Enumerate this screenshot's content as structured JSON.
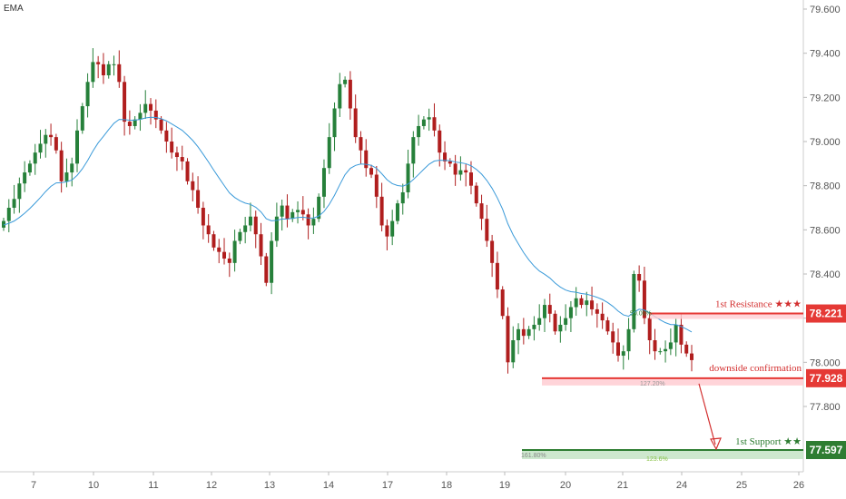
{
  "indicator_label": "EMA",
  "colors": {
    "up": "#26803a",
    "down": "#b01e1e",
    "ema": "#3a9ad9",
    "resistance": "#e53935",
    "support": "#2e7d32",
    "axis_text": "#555555"
  },
  "chart_data": {
    "type": "candlestick",
    "title": "",
    "ylim": [
      77.65,
      79.65
    ],
    "yticks": [
      "79.600",
      "79.400",
      "79.200",
      "79.000",
      "78.800",
      "78.600",
      "78.400",
      "78.200",
      "78.000",
      "77.800"
    ],
    "xticks": [
      "7",
      "10",
      "11",
      "12",
      "13",
      "14",
      "17",
      "18",
      "19",
      "20",
      "21",
      "24",
      "25",
      "26"
    ],
    "closes": [
      78.64,
      78.7,
      78.74,
      78.81,
      78.86,
      78.9,
      78.95,
      78.99,
      79.03,
      79.02,
      78.96,
      78.82,
      78.86,
      78.9,
      79.05,
      79.16,
      79.27,
      79.36,
      79.35,
      79.3,
      79.35,
      79.35,
      79.27,
      79.09,
      79.07,
      79.1,
      79.13,
      79.17,
      79.14,
      79.1,
      79.05,
      79,
      78.95,
      78.93,
      78.91,
      78.82,
      78.78,
      78.7,
      78.62,
      78.58,
      78.52,
      78.5,
      78.47,
      78.45,
      78.55,
      78.59,
      78.62,
      78.66,
      78.58,
      78.48,
      78.36,
      78.55,
      78.66,
      78.71,
      78.65,
      78.68,
      78.69,
      78.67,
      78.62,
      78.65,
      78.75,
      78.88,
      79.02,
      79.15,
      79.26,
      79.28,
      79.15,
      79.02,
      78.96,
      78.88,
      78.85,
      78.75,
      78.62,
      78.57,
      78.64,
      78.72,
      78.77,
      78.9,
      79.02,
      79.07,
      79.1,
      79.11,
      79.05,
      78.95,
      78.91,
      78.9,
      78.85,
      78.87,
      78.86,
      78.8,
      78.72,
      78.65,
      78.55,
      78.45,
      78.33,
      78.21,
      78.0,
      78.1,
      78.15,
      78.12,
      78.15,
      78.17,
      78.2,
      78.26,
      78.22,
      78.14,
      78.17,
      78.2,
      78.25,
      78.29,
      78.26,
      78.28,
      78.24,
      78.22,
      78.19,
      78.14,
      78.09,
      78.03,
      78.05,
      78.15,
      78.4,
      78.37,
      78.2,
      78.1,
      78.05,
      78.05,
      78.06,
      78.09,
      78.17,
      78.08,
      78.04,
      78.01
    ],
    "ema_start": 78.62,
    "levels": [
      {
        "label": "1st Resistance ★★★",
        "value": 78.221,
        "price_label": "78.221",
        "fib_label": "50.00%"
      },
      {
        "label": "downside confirmation",
        "value": 77.928,
        "price_label": "77.928",
        "fib_label": "127.20%"
      },
      {
        "label": "1st Support ★★",
        "value": 77.597,
        "price_label": "77.597",
        "fib_label": "161.80%",
        "fib_label_2": "123.6%"
      }
    ]
  }
}
